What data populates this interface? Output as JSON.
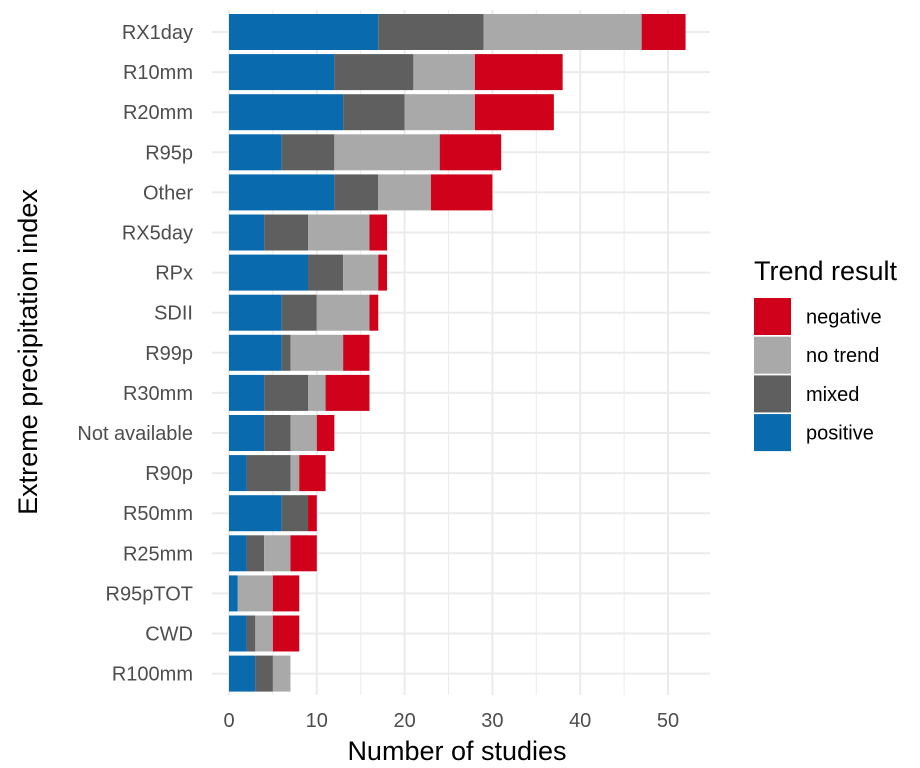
{
  "chart_data": {
    "type": "bar",
    "orientation": "horizontal",
    "stacked": true,
    "xlabel": "Number of studies",
    "ylabel": "Extreme precipitation index",
    "xlim": [
      0,
      54
    ],
    "xticks": [
      0,
      10,
      20,
      30,
      40,
      50
    ],
    "grid": true,
    "categories": [
      "RX1day",
      "R10mm",
      "R20mm",
      "R95p",
      "Other",
      "RX5day",
      "RPx",
      "SDII",
      "R99p",
      "R30mm",
      "Not available",
      "R90p",
      "R50mm",
      "R25mm",
      "R95pTOT",
      "CWD",
      "R100mm"
    ],
    "series": [
      {
        "name": "positive",
        "color": "#0a6aae",
        "values": [
          17,
          12,
          13,
          6,
          12,
          4,
          9,
          6,
          6,
          4,
          4,
          2,
          6,
          2,
          1,
          2,
          3
        ]
      },
      {
        "name": "mixed",
        "color": "#5f5f5f",
        "values": [
          12,
          9,
          7,
          6,
          5,
          5,
          4,
          4,
          1,
          5,
          3,
          5,
          3,
          2,
          0,
          1,
          2
        ]
      },
      {
        "name": "no trend",
        "color": "#a9a9a9",
        "values": [
          18,
          7,
          8,
          12,
          6,
          7,
          4,
          6,
          6,
          2,
          3,
          1,
          0,
          3,
          4,
          2,
          2
        ]
      },
      {
        "name": "negative",
        "color": "#d0021b",
        "values": [
          5,
          10,
          9,
          7,
          7,
          2,
          1,
          1,
          3,
          5,
          2,
          3,
          1,
          3,
          3,
          3,
          0
        ]
      }
    ],
    "legend": {
      "title": "Trend result",
      "position": "right",
      "order": [
        "negative",
        "no trend",
        "mixed",
        "positive"
      ]
    }
  }
}
